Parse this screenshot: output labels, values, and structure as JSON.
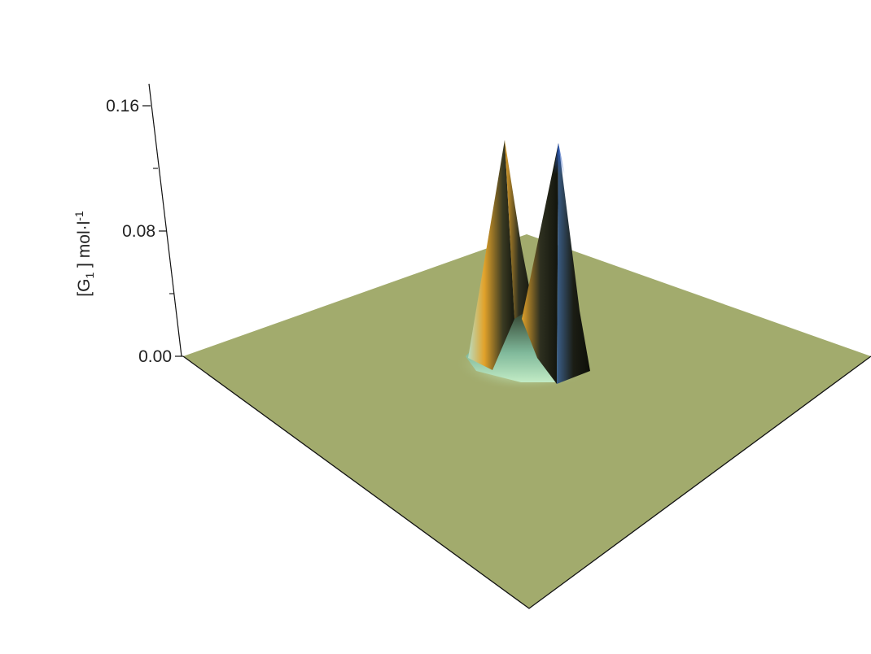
{
  "chart_data": {
    "type": "surface3d",
    "ylabel": {
      "open": "[G",
      "sub": "1",
      "close": " ] mol·l",
      "sup": "-1"
    },
    "z_ticks": [
      "0.00",
      "0.08",
      "0.16"
    ],
    "zlim": [
      0,
      0.16
    ],
    "peaks": [
      {
        "value": 0.14
      },
      {
        "value": 0.14
      }
    ],
    "grid": false,
    "colors": {
      "plane": "#a2ab6d",
      "peak_dark": "#16180f",
      "peak_orange": "#e2a22a",
      "peak_mint": "#c2ebc5",
      "peak_blue": "#2654b6"
    }
  }
}
